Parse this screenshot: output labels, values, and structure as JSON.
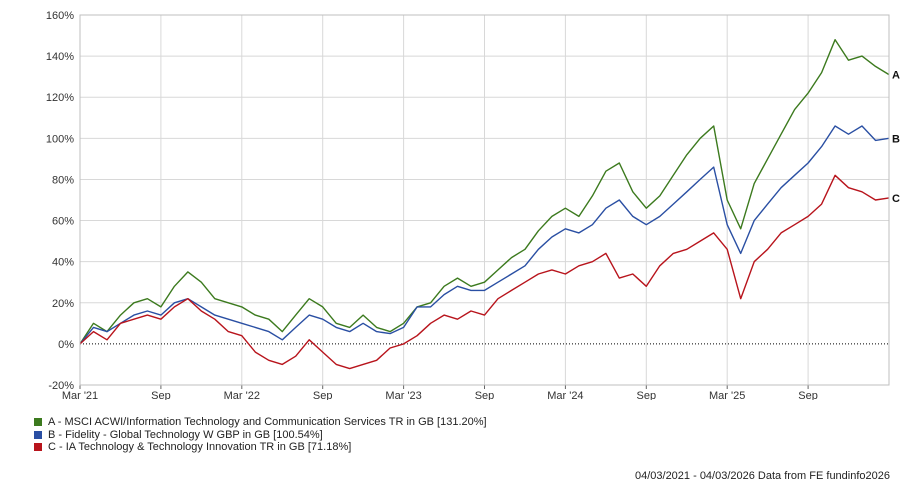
{
  "chart_data": {
    "type": "line",
    "title": "",
    "xlabel": "",
    "ylabel": "",
    "ylim": [
      -20,
      160
    ],
    "y_ticks": [
      "160%",
      "140%",
      "120%",
      "100%",
      "80%",
      "60%",
      "40%",
      "20%",
      "0%",
      "-20%"
    ],
    "y_tick_values": [
      160,
      140,
      120,
      100,
      80,
      60,
      40,
      20,
      0,
      -20
    ],
    "x_ticks": [
      "Mar '21",
      "Sep",
      "Mar '22",
      "Sep",
      "Mar '23",
      "Sep",
      "Mar '24",
      "Sep",
      "Mar '25",
      "Sep"
    ],
    "x_tick_months": [
      0,
      6,
      12,
      18,
      24,
      30,
      36,
      42,
      48,
      54
    ],
    "xlim_months": [
      0,
      60
    ],
    "grid": true,
    "zero_line": "dotted",
    "x": [
      0,
      1,
      2,
      3,
      4,
      5,
      6,
      7,
      8,
      9,
      10,
      11,
      12,
      13,
      14,
      15,
      16,
      17,
      18,
      19,
      20,
      21,
      22,
      23,
      24,
      25,
      26,
      27,
      28,
      29,
      30,
      31,
      32,
      33,
      34,
      35,
      36,
      37,
      38,
      39,
      40,
      41,
      42,
      43,
      44,
      45,
      46,
      47,
      48,
      49,
      50,
      51,
      52,
      53,
      54,
      55,
      56,
      57,
      58,
      59,
      60
    ],
    "series": [
      {
        "name": "A - MSCI ACWI/Information Technology and Communication Services TR in GB [131.20%]",
        "label": "A",
        "color": "#3c7a1e",
        "values": [
          0,
          10,
          6,
          14,
          20,
          22,
          18,
          28,
          35,
          30,
          22,
          20,
          18,
          14,
          12,
          6,
          14,
          22,
          18,
          10,
          8,
          14,
          8,
          6,
          10,
          18,
          20,
          28,
          32,
          28,
          30,
          36,
          42,
          46,
          55,
          62,
          66,
          62,
          72,
          84,
          88,
          74,
          66,
          72,
          82,
          92,
          100,
          106,
          70,
          56,
          78,
          90,
          102,
          114,
          122,
          132,
          148,
          138,
          140,
          135,
          131
        ]
      },
      {
        "name": "B - Fidelity - Global Technology W GBP in GB [100.54%]",
        "label": "B",
        "color": "#2a4fa3",
        "values": [
          0,
          8,
          6,
          10,
          14,
          16,
          14,
          20,
          22,
          18,
          14,
          12,
          10,
          8,
          6,
          2,
          8,
          14,
          12,
          8,
          6,
          10,
          6,
          5,
          8,
          18,
          18,
          24,
          28,
          26,
          26,
          30,
          34,
          38,
          46,
          52,
          56,
          54,
          58,
          66,
          70,
          62,
          58,
          62,
          68,
          74,
          80,
          86,
          58,
          44,
          60,
          68,
          76,
          82,
          88,
          96,
          106,
          102,
          106,
          99,
          100
        ]
      },
      {
        "name": "C - IA Technology & Technology Innovation TR in GB [71.18%]",
        "label": "C",
        "color": "#b8141c",
        "values": [
          0,
          6,
          2,
          10,
          12,
          14,
          12,
          18,
          22,
          16,
          12,
          6,
          4,
          -4,
          -8,
          -10,
          -6,
          2,
          -4,
          -10,
          -12,
          -10,
          -8,
          -2,
          0,
          4,
          10,
          14,
          12,
          16,
          14,
          22,
          26,
          30,
          34,
          36,
          34,
          38,
          40,
          44,
          32,
          34,
          28,
          38,
          44,
          46,
          50,
          54,
          46,
          22,
          40,
          46,
          54,
          58,
          62,
          68,
          82,
          76,
          74,
          70,
          71
        ]
      }
    ]
  },
  "footer": {
    "text": "04/03/2021 - 04/03/2026 Data from FE fundinfo2026"
  }
}
